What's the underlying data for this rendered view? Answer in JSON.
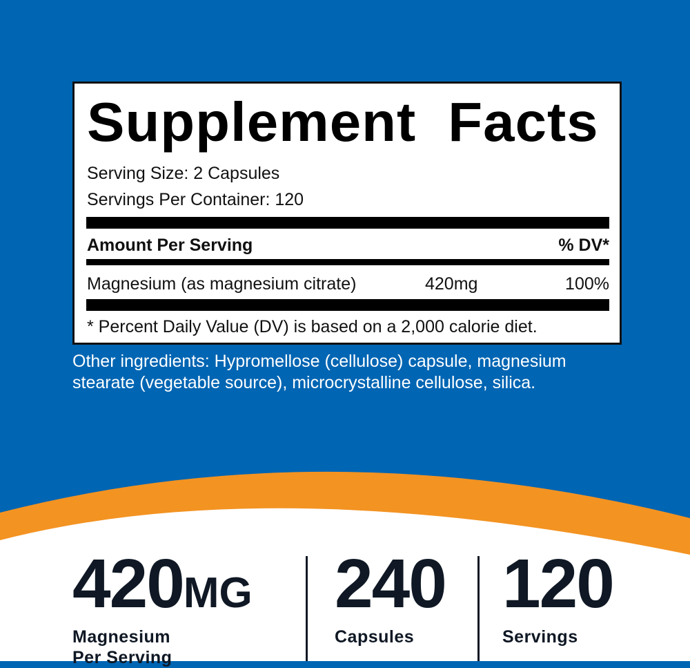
{
  "colors": {
    "background": "#0065b3",
    "accent": "#f39322",
    "text": "#0f1824"
  },
  "facts": {
    "title": "Supplement Facts",
    "serving_size": "Serving Size: 2 Capsules",
    "servings_per_container": "Servings Per Container: 120",
    "header": {
      "amount": "Amount Per Serving",
      "dv": "% DV*"
    },
    "rows": [
      {
        "name": "Magnesium (as magnesium citrate)",
        "amount": "420mg",
        "dv": "100%"
      }
    ],
    "footnote": "* Percent Daily Value (DV) is based on a 2,000 calorie diet."
  },
  "other_ingredients": "Other ingredients: Hypromellose (cellulose) capsule, magnesium stearate (vegetable source), microcrystalline cellulose, silica.",
  "stats": [
    {
      "value": "420",
      "unit": "MG",
      "label1": "Magnesium",
      "label2": "Per Serving"
    },
    {
      "value": "240",
      "label1": "Capsules"
    },
    {
      "value": "120",
      "label1": "Servings"
    }
  ]
}
